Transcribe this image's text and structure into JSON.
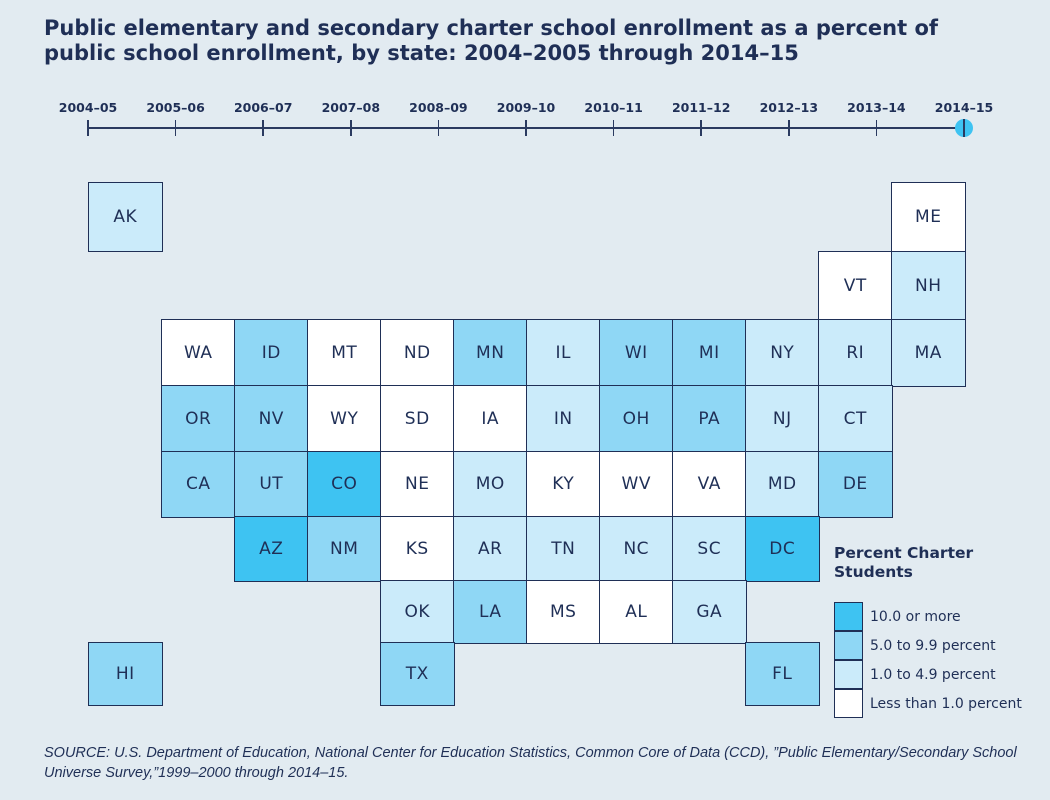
{
  "title": "Public elementary and secondary charter school enrollment as a percent of public school enrollment, by state: 2004–2005 through 2014–15",
  "timeline": {
    "years": [
      "2004–05",
      "2005–06",
      "2006–07",
      "2007–08",
      "2008–09",
      "2009–10",
      "2010–11",
      "2011–12",
      "2012–13",
      "2013–14",
      "2014–15"
    ],
    "selected": "2014–15"
  },
  "colors": {
    "ten_or_more": "#3ec3f2",
    "five_to_9_9": "#8fd7f5",
    "one_to_4_9": "#cbebfa",
    "less_than_1": "#ffffff",
    "background": "#e2ebf1",
    "text": "#1f2f56"
  },
  "legend": {
    "title": "Percent Charter Students",
    "items": [
      {
        "key": "ten_or_more",
        "label": "10.0 or more"
      },
      {
        "key": "five_to_9_9",
        "label": "5.0 to 9.9 percent"
      },
      {
        "key": "one_to_4_9",
        "label": "1.0 to 4.9 percent"
      },
      {
        "key": "less_than_1",
        "label": "Less than 1.0 percent"
      }
    ]
  },
  "states": [
    {
      "code": "AK",
      "category": "one_to_4_9"
    },
    {
      "code": "ME",
      "category": "less_than_1"
    },
    {
      "code": "VT",
      "category": "less_than_1"
    },
    {
      "code": "NH",
      "category": "one_to_4_9"
    },
    {
      "code": "WA",
      "category": "less_than_1"
    },
    {
      "code": "ID",
      "category": "five_to_9_9"
    },
    {
      "code": "MT",
      "category": "less_than_1"
    },
    {
      "code": "ND",
      "category": "less_than_1"
    },
    {
      "code": "MN",
      "category": "five_to_9_9"
    },
    {
      "code": "IL",
      "category": "one_to_4_9"
    },
    {
      "code": "WI",
      "category": "five_to_9_9"
    },
    {
      "code": "MI",
      "category": "five_to_9_9"
    },
    {
      "code": "NY",
      "category": "one_to_4_9"
    },
    {
      "code": "RI",
      "category": "one_to_4_9"
    },
    {
      "code": "MA",
      "category": "one_to_4_9"
    },
    {
      "code": "OR",
      "category": "five_to_9_9"
    },
    {
      "code": "NV",
      "category": "five_to_9_9"
    },
    {
      "code": "WY",
      "category": "less_than_1"
    },
    {
      "code": "SD",
      "category": "less_than_1"
    },
    {
      "code": "IA",
      "category": "less_than_1"
    },
    {
      "code": "IN",
      "category": "one_to_4_9"
    },
    {
      "code": "OH",
      "category": "five_to_9_9"
    },
    {
      "code": "PA",
      "category": "five_to_9_9"
    },
    {
      "code": "NJ",
      "category": "one_to_4_9"
    },
    {
      "code": "CT",
      "category": "one_to_4_9"
    },
    {
      "code": "CA",
      "category": "five_to_9_9"
    },
    {
      "code": "UT",
      "category": "five_to_9_9"
    },
    {
      "code": "CO",
      "category": "ten_or_more"
    },
    {
      "code": "NE",
      "category": "less_than_1"
    },
    {
      "code": "MO",
      "category": "one_to_4_9"
    },
    {
      "code": "KY",
      "category": "less_than_1"
    },
    {
      "code": "WV",
      "category": "less_than_1"
    },
    {
      "code": "VA",
      "category": "less_than_1"
    },
    {
      "code": "MD",
      "category": "one_to_4_9"
    },
    {
      "code": "DE",
      "category": "five_to_9_9"
    },
    {
      "code": "AZ",
      "category": "ten_or_more"
    },
    {
      "code": "NM",
      "category": "five_to_9_9"
    },
    {
      "code": "KS",
      "category": "less_than_1"
    },
    {
      "code": "AR",
      "category": "one_to_4_9"
    },
    {
      "code": "TN",
      "category": "one_to_4_9"
    },
    {
      "code": "NC",
      "category": "one_to_4_9"
    },
    {
      "code": "SC",
      "category": "one_to_4_9"
    },
    {
      "code": "DC",
      "category": "ten_or_more"
    },
    {
      "code": "OK",
      "category": "one_to_4_9"
    },
    {
      "code": "LA",
      "category": "five_to_9_9"
    },
    {
      "code": "MS",
      "category": "less_than_1"
    },
    {
      "code": "AL",
      "category": "less_than_1"
    },
    {
      "code": "GA",
      "category": "one_to_4_9"
    },
    {
      "code": "HI",
      "category": "five_to_9_9"
    },
    {
      "code": "TX",
      "category": "five_to_9_9"
    },
    {
      "code": "FL",
      "category": "five_to_9_9"
    }
  ],
  "source": "SOURCE: U.S. Department of Education, National Center for Education Statistics, Common Core of Data (CCD), ”Public Elementary/Secondary School Universe Survey,”1999–2000 through 2014–15."
}
